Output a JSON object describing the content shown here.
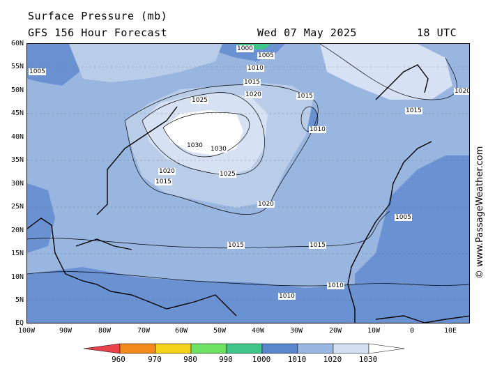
{
  "header": {
    "title": "Surface Pressure (mb)",
    "subtitle": "GFS 156 Hour Forecast",
    "date": "Wed 07 May 2025",
    "time": "18 UTC"
  },
  "axes": {
    "lat_labels": [
      "60N",
      "55N",
      "50N",
      "45N",
      "40N",
      "35N",
      "30N",
      "25N",
      "20N",
      "15N",
      "10N",
      "5N",
      "EQ"
    ],
    "lon_labels": [
      "100W",
      "90W",
      "80W",
      "70W",
      "60W",
      "50W",
      "40W",
      "30W",
      "20W",
      "10W",
      "0",
      "10E"
    ]
  },
  "isobar_labels": {
    "values": [
      "1005",
      "1000",
      "1005",
      "1010",
      "1015",
      "1020",
      "1025",
      "1030",
      "1030",
      "1025",
      "1020",
      "1015",
      "1010",
      "1015",
      "1020",
      "1015",
      "1010",
      "1005",
      "1015",
      "1010",
      "1015",
      "1020"
    ]
  },
  "legend": {
    "labels": [
      "960",
      "970",
      "980",
      "990",
      "1000",
      "1010",
      "1020",
      "1030"
    ],
    "colors": [
      "#e8424a",
      "#f28a1e",
      "#f5d21a",
      "#6ee063",
      "#3fc489",
      "#5a86cc",
      "#99b7e0",
      "#d4e0f2"
    ]
  },
  "credit": "© www.PassageWeather.com",
  "colors": {
    "p1010": "#6a92d2",
    "p1015": "#99b6e0",
    "p1020": "#b9cde9",
    "p1025": "#d6e2f3",
    "p1030": "#eef3fa",
    "high": "#ffffff"
  }
}
